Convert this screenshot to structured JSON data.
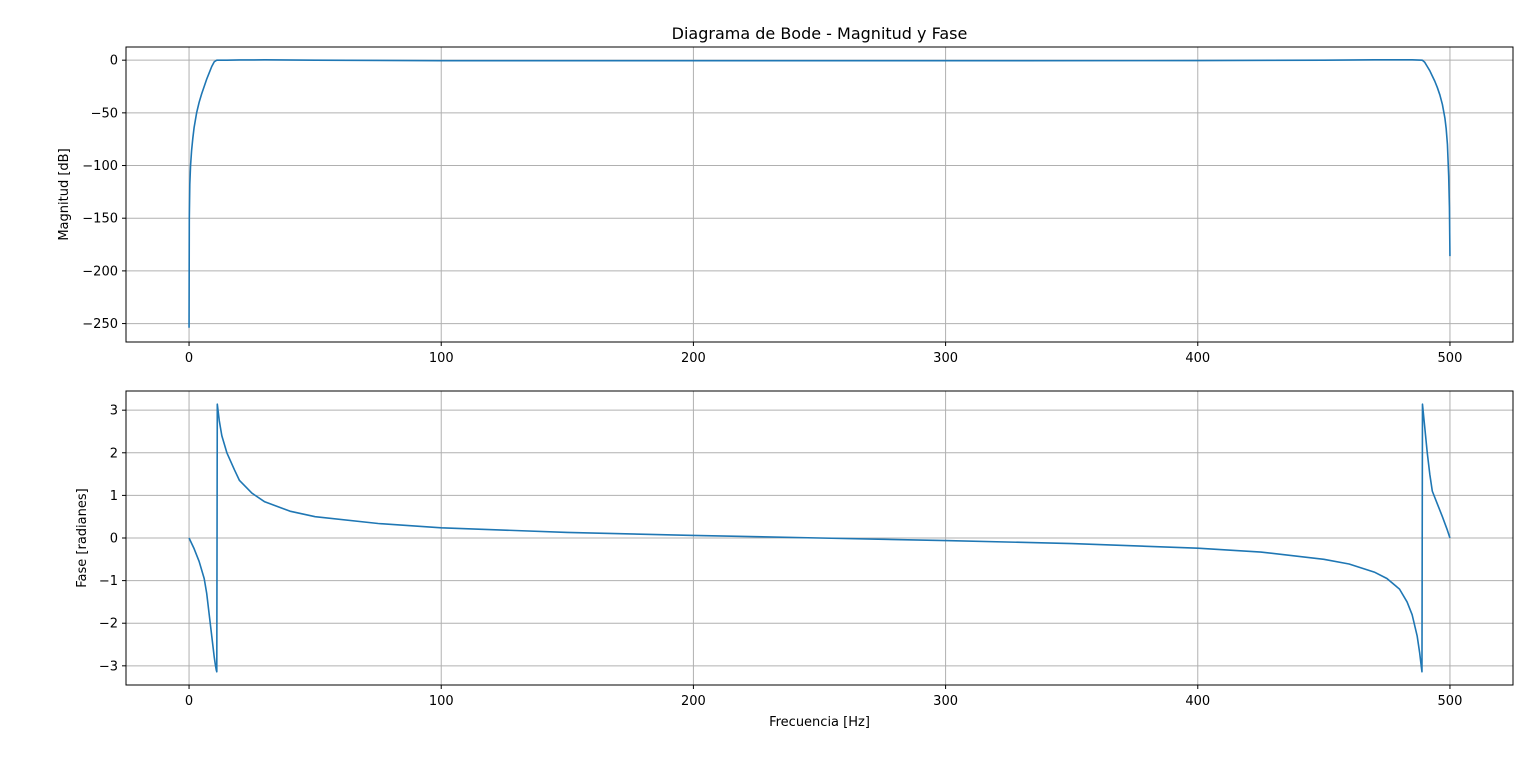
{
  "chart_data": [
    {
      "type": "line",
      "title": "Diagrama de Bode - Magnitud y Fase",
      "xlabel": "",
      "ylabel": "Magnitud [dB]",
      "xlim": [
        -25,
        525
      ],
      "ylim": [
        -267.5,
        12.5
      ],
      "xticks": [
        0,
        100,
        200,
        300,
        400,
        500
      ],
      "xtick_labels": [
        "0",
        "100",
        "200",
        "300",
        "400",
        "500"
      ],
      "yticks": [
        0,
        -50,
        -100,
        -150,
        -200,
        -250
      ],
      "ytick_labels": [
        "0",
        "−50",
        "−100",
        "−150",
        "−200",
        "−250"
      ],
      "grid": true,
      "series": [
        {
          "color": "#1f77b4",
          "x": [
            0,
            0.1,
            0.3,
            0.6,
            1,
            1.5,
            2,
            3,
            4,
            5,
            6,
            7,
            8,
            9,
            10,
            11,
            12,
            15,
            20,
            30,
            50,
            100,
            200,
            250,
            300,
            400,
            450,
            470,
            480,
            485,
            489,
            490,
            491,
            492,
            493,
            494,
            495,
            496,
            497,
            498,
            498.5,
            499,
            499.5,
            499.8,
            500
          ],
          "y": [
            -254,
            -150,
            -118,
            -100,
            -86,
            -74,
            -64,
            -50,
            -40,
            -32,
            -25,
            -18,
            -12,
            -6,
            -1.5,
            0,
            0,
            0,
            0.2,
            0.3,
            0,
            -0.5,
            -0.5,
            -0.5,
            -0.5,
            -0.4,
            0,
            0.3,
            0.3,
            0.3,
            0,
            -2,
            -6,
            -10,
            -15,
            -20,
            -26,
            -33,
            -42,
            -55,
            -65,
            -80,
            -110,
            -140,
            -186
          ]
        }
      ]
    },
    {
      "type": "line",
      "title": "",
      "xlabel": "Frecuencia [Hz]",
      "ylabel": "Fase [radianes]",
      "xlim": [
        -25,
        525
      ],
      "ylim": [
        -3.45,
        3.45
      ],
      "xticks": [
        0,
        100,
        200,
        300,
        400,
        500
      ],
      "xtick_labels": [
        "0",
        "100",
        "200",
        "300",
        "400",
        "500"
      ],
      "yticks": [
        3,
        2,
        1,
        0,
        -1,
        -2,
        -3
      ],
      "ytick_labels": [
        "3",
        "2",
        "1",
        "0",
        "−1",
        "−2",
        "−3"
      ],
      "grid": true,
      "series": [
        {
          "color": "#1f77b4",
          "x": [
            0,
            2,
            4,
            6,
            7,
            8,
            9,
            10,
            10.5,
            10.8,
            11,
            11.2,
            12,
            13,
            15,
            18,
            20,
            25,
            30,
            40,
            50,
            75,
            100,
            150,
            200,
            250,
            300,
            350,
            400,
            425,
            450,
            460,
            470,
            475,
            480,
            483,
            485,
            487,
            488,
            488.7,
            488.9,
            489.1,
            490,
            491,
            492,
            493,
            495,
            497,
            499,
            500
          ],
          "y": [
            0,
            -0.25,
            -0.55,
            -0.95,
            -1.3,
            -1.8,
            -2.3,
            -2.8,
            -3.0,
            -3.1,
            -3.14,
            3.14,
            2.75,
            2.4,
            2.0,
            1.6,
            1.35,
            1.05,
            0.85,
            0.63,
            0.5,
            0.34,
            0.24,
            0.13,
            0.06,
            0.0,
            -0.06,
            -0.13,
            -0.24,
            -0.33,
            -0.5,
            -0.61,
            -0.8,
            -0.95,
            -1.2,
            -1.5,
            -1.8,
            -2.3,
            -2.7,
            -3.05,
            -3.14,
            3.14,
            2.6,
            2.0,
            1.5,
            1.1,
            0.8,
            0.5,
            0.18,
            0
          ]
        }
      ]
    }
  ]
}
